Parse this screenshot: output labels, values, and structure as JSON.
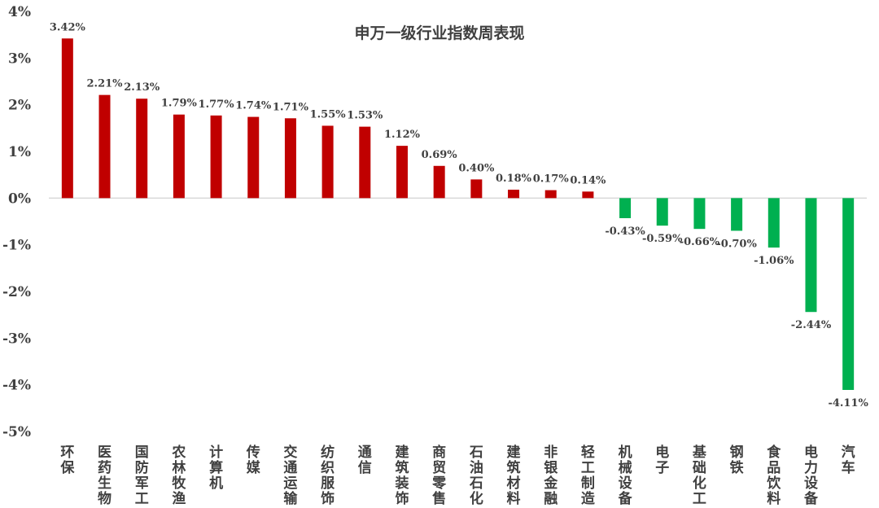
{
  "chart_data": {
    "type": "bar",
    "title": "申万一级行业指数周表现",
    "xlabel": "",
    "ylabel": "",
    "ylim": [
      -5,
      4
    ],
    "y_ticks": [
      "4%",
      "3%",
      "2%",
      "1%",
      "0%",
      "-1%",
      "-2%",
      "-3%",
      "-4%",
      "-5%"
    ],
    "y_tick_values": [
      4,
      3,
      2,
      1,
      0,
      -1,
      -2,
      -3,
      -4,
      -5
    ],
    "grid": false,
    "legend": "none",
    "positive_color": "#c00000",
    "negative_color": "#00b050",
    "categories": [
      "环保",
      "医药生物",
      "国防军工",
      "农林牧渔",
      "计算机",
      "传媒",
      "交通运输",
      "纺织服饰",
      "通信",
      "建筑装饰",
      "商贸零售",
      "石油石化",
      "建筑材料",
      "非银金融",
      "轻工制造",
      "机械设备",
      "电子",
      "基础化工",
      "钢铁",
      "食品饮料",
      "电力设备",
      "汽车"
    ],
    "values": [
      3.42,
      2.21,
      2.13,
      1.79,
      1.77,
      1.74,
      1.71,
      1.55,
      1.53,
      1.12,
      0.69,
      0.4,
      0.18,
      0.17,
      0.14,
      -0.43,
      -0.59,
      -0.66,
      -0.7,
      -1.06,
      -2.44,
      -4.11
    ],
    "labels": [
      "3.42%",
      "2.21%",
      "2.13%",
      "1.79%",
      "1.77%",
      "1.74%",
      "1.71%",
      "1.55%",
      "1.53%",
      "1.12%",
      "0.69%",
      "0.40%",
      "0.18%",
      "0.17%",
      "0.14%",
      "-0.43%",
      "-0.59%",
      "-0.66%",
      "-0.70%",
      "-1.06%",
      "-2.44%",
      "-4.11%"
    ]
  }
}
